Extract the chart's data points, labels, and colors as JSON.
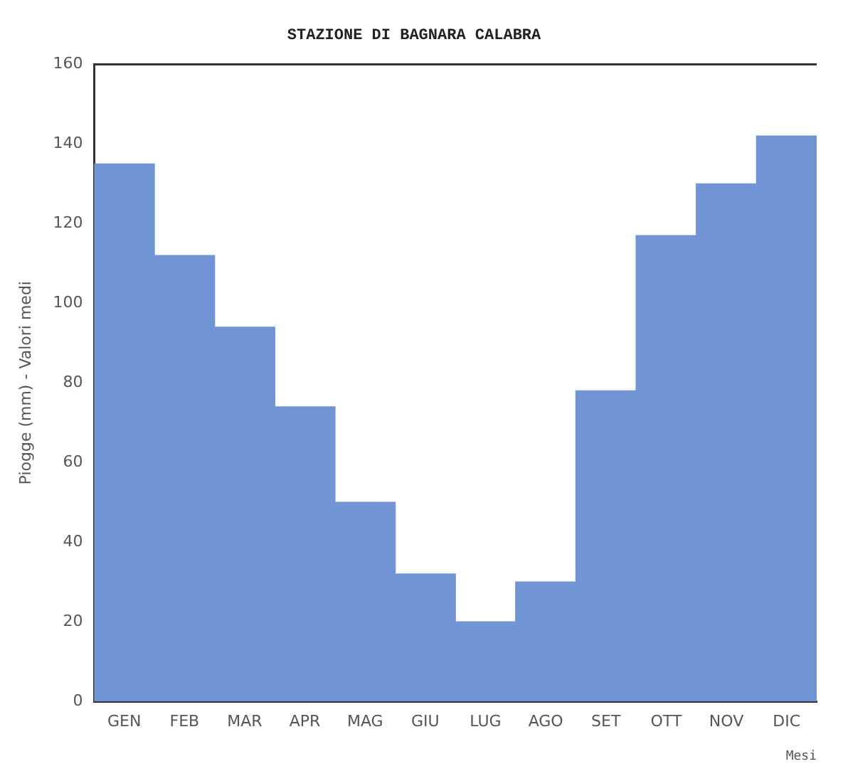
{
  "chart_data": {
    "type": "bar",
    "title": "STAZIONE DI BAGNARA CALABRA",
    "xlabel": "Mesi",
    "ylabel": "Piogge (mm) - Valori medi",
    "categories": [
      "GEN",
      "FEB",
      "MAR",
      "APR",
      "MAG",
      "GIU",
      "LUG",
      "AGO",
      "SET",
      "OTT",
      "NOV",
      "DIC"
    ],
    "values": [
      135,
      112,
      94,
      74,
      50,
      32,
      20,
      30,
      78,
      117,
      130,
      142
    ],
    "color": "#7094d4",
    "ylim": [
      0,
      160
    ],
    "yticks": [
      0,
      20,
      40,
      60,
      80,
      100,
      120,
      140,
      160
    ],
    "grid": false,
    "legend": false
  }
}
